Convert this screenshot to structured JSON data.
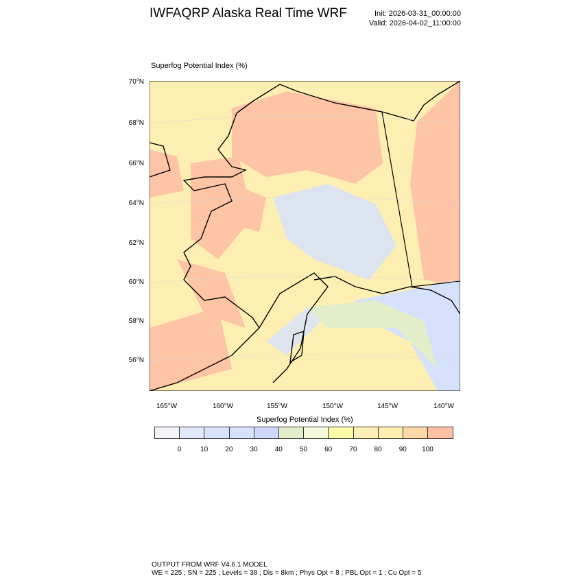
{
  "header": {
    "title": "IWFAQRP Alaska Real Time WRF",
    "init": "Init: 2026-03-31_00:00:00",
    "valid": "Valid: 2026-04-02_11:00:00"
  },
  "map": {
    "field_label": "Superfog Potential Index   (%)",
    "lat_labels": [
      "70°N",
      "68°N",
      "66°N",
      "64°N",
      "62°N",
      "60°N",
      "58°N",
      "56°N"
    ],
    "lon_labels": [
      "165°W",
      "160°W",
      "155°W",
      "150°W",
      "145°W",
      "140°W"
    ]
  },
  "colorbar": {
    "title": "Superfog Potential Index  (%)",
    "colors": [
      "#f2f4f8",
      "#e2e9fb",
      "#d8e3fb",
      "#d6e2fb",
      "#d0d9fb",
      "#e2edca",
      "#f5fadd",
      "#fefbab",
      "#fdefb5",
      "#fdeeb1",
      "#fdd9a8",
      "#ffc1a3"
    ],
    "labels": [
      "0",
      "10",
      "20",
      "30",
      "40",
      "50",
      "60",
      "70",
      "80",
      "90",
      "100"
    ]
  },
  "footer": {
    "line1": "OUTPUT FROM WRF V4.6.1 MODEL",
    "line2": "WE = 225 ; SN = 225 ; Levels = 38 ; Dis = 8km ; Phys Opt = 8 ; PBL Opt = 1 ; Cu Opt = 5"
  }
}
